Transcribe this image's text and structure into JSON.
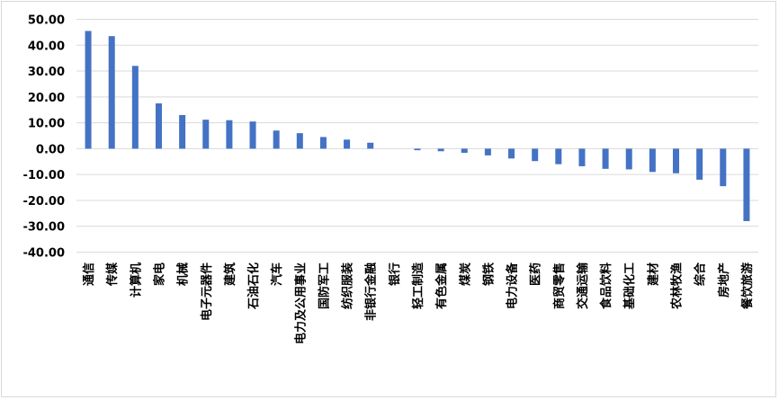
{
  "chart_data": {
    "type": "bar",
    "categories": [
      "通信",
      "传媒",
      "计算机",
      "家电",
      "机械",
      "电子元器件",
      "建筑",
      "石油石化",
      "汽车",
      "电力及公用事业",
      "国防军工",
      "纺织服装",
      "非银行金融",
      "银行",
      "轻工制造",
      "有色金属",
      "煤炭",
      "钢铁",
      "电力设备",
      "医药",
      "商贸零售",
      "交通运输",
      "食品饮料",
      "基础化工",
      "建材",
      "农林牧渔",
      "综合",
      "房地产",
      "餐饮旅游"
    ],
    "values": [
      45.5,
      43.5,
      32.0,
      17.5,
      13.0,
      11.2,
      11.0,
      10.5,
      7.0,
      6.0,
      4.5,
      3.5,
      2.3,
      0.0,
      -0.6,
      -1.0,
      -1.6,
      -2.6,
      -3.8,
      -4.8,
      -6.0,
      -6.8,
      -7.8,
      -8.0,
      -9.0,
      -9.5,
      -12.0,
      -14.5,
      -28.0
    ],
    "ylim": [
      -40,
      50
    ],
    "yticks": [
      "50.00",
      "40.00",
      "30.00",
      "20.00",
      "10.00",
      "0.00",
      "-10.00",
      "-20.00",
      "-30.00",
      "-40.00"
    ],
    "ytick_values": [
      50,
      40,
      30,
      20,
      10,
      0,
      -10,
      -20,
      -30,
      -40
    ],
    "grid": true,
    "bar_color": "#4472c4",
    "grid_color": "#d9d9d9"
  }
}
